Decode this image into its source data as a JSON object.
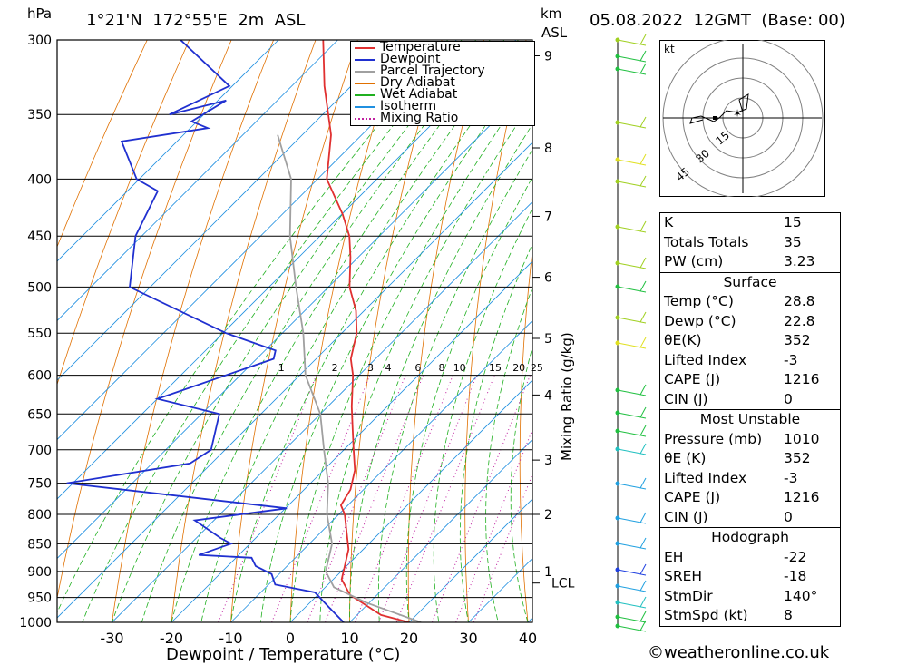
{
  "header": {
    "hpa_unit": "hPa",
    "location": "1°21'N  172°55'E  2m  ASL",
    "km_unit": "km",
    "km_sub": "ASL",
    "datetime": "05.08.2022  12GMT  (Base: 00)"
  },
  "legend": {
    "items": [
      {
        "label": "Temperature",
        "color": "#e03030",
        "style": "solid"
      },
      {
        "label": "Dewpoint",
        "color": "#2030d0",
        "style": "solid"
      },
      {
        "label": "Parcel Trajectory",
        "color": "#a0a0a0",
        "style": "solid"
      },
      {
        "label": "Dry Adiabat",
        "color": "#e07000",
        "style": "solid"
      },
      {
        "label": "Wet Adiabat",
        "color": "#20b020",
        "style": "solid"
      },
      {
        "label": "Isotherm",
        "color": "#2090e0",
        "style": "solid"
      },
      {
        "label": "Mixing Ratio",
        "color": "#c020a0",
        "style": "dotted"
      }
    ]
  },
  "chart_data": {
    "type": "line",
    "title": "",
    "xlabel": "Dewpoint / Temperature (°C)",
    "ylabel": "hPa",
    "xlim": [
      -40,
      40
    ],
    "x_ticks": [
      -30,
      -20,
      -10,
      0,
      10,
      20,
      30,
      40
    ],
    "pressure_levels": [
      300,
      350,
      400,
      450,
      500,
      550,
      600,
      650,
      700,
      750,
      800,
      850,
      900,
      950,
      1000
    ],
    "km_ticks": [
      {
        "label": "9",
        "p": 310
      },
      {
        "label": "8",
        "p": 375
      },
      {
        "label": "7",
        "p": 432
      },
      {
        "label": "6",
        "p": 490
      },
      {
        "label": "5",
        "p": 556
      },
      {
        "label": "4",
        "p": 625
      },
      {
        "label": "3",
        "p": 715
      },
      {
        "label": "2",
        "p": 800
      },
      {
        "label": "1",
        "p": 900
      },
      {
        "label": "LCL",
        "p": 922
      }
    ],
    "right_axis_label": "Mixing Ratio (g/kg)",
    "mixing_ratio_labels": [
      "1",
      "2",
      "3",
      "4",
      "6",
      "8",
      "10",
      "15",
      "20",
      "25"
    ],
    "mixing_ratio_label_temps": [
      -6,
      3,
      9,
      12,
      17,
      21,
      24,
      30,
      34,
      37
    ],
    "series": [
      {
        "name": "Temperature",
        "color": "#e03030",
        "points": [
          [
            -17,
            300
          ],
          [
            -15,
            330
          ],
          [
            -12,
            365
          ],
          [
            -11,
            400
          ],
          [
            -7,
            430
          ],
          [
            -5,
            450
          ],
          [
            -4,
            470
          ],
          [
            -3,
            500
          ],
          [
            -1,
            525
          ],
          [
            0,
            550
          ],
          [
            0,
            580
          ],
          [
            1,
            600
          ],
          [
            2,
            640
          ],
          [
            3,
            670
          ],
          [
            4,
            700
          ],
          [
            5,
            730
          ],
          [
            5,
            760
          ],
          [
            4,
            785
          ],
          [
            5,
            800
          ],
          [
            6,
            830
          ],
          [
            7,
            860
          ],
          [
            7,
            890
          ],
          [
            7,
            915
          ],
          [
            9,
            945
          ],
          [
            15,
            985
          ],
          [
            20,
            1000
          ]
        ]
      },
      {
        "name": "Dewpoint",
        "color": "#2030d0",
        "points": [
          [
            -41,
            300
          ],
          [
            -31,
            330
          ],
          [
            -40,
            350
          ],
          [
            -31,
            340
          ],
          [
            -36,
            355
          ],
          [
            -33,
            360
          ],
          [
            -47,
            370
          ],
          [
            -43,
            400
          ],
          [
            -39,
            410
          ],
          [
            -41,
            450
          ],
          [
            -40,
            500
          ],
          [
            -22,
            550
          ],
          [
            -13,
            570
          ],
          [
            -13,
            580
          ],
          [
            -31,
            630
          ],
          [
            -20,
            650
          ],
          [
            -20,
            700
          ],
          [
            -23,
            720
          ],
          [
            -43,
            750
          ],
          [
            -5,
            790
          ],
          [
            -20,
            810
          ],
          [
            -15,
            840
          ],
          [
            -13,
            850
          ],
          [
            -18,
            870
          ],
          [
            -9,
            875
          ],
          [
            -8,
            890
          ],
          [
            -5,
            905
          ],
          [
            -4,
            925
          ],
          [
            3,
            940
          ],
          [
            6,
            970
          ],
          [
            9,
            1000
          ]
        ]
      },
      {
        "name": "Parcel Trajectory",
        "color": "#a0a0a0",
        "points": [
          [
            -21,
            365
          ],
          [
            -17,
            400
          ],
          [
            -15,
            450
          ],
          [
            -12,
            500
          ],
          [
            -9,
            550
          ],
          [
            -7,
            600
          ],
          [
            -3,
            650
          ],
          [
            -1,
            700
          ],
          [
            1,
            750
          ],
          [
            2,
            800
          ],
          [
            4,
            850
          ],
          [
            4,
            900
          ],
          [
            6,
            930
          ],
          [
            12,
            960
          ],
          [
            22,
            1000
          ]
        ]
      }
    ],
    "hodograph": {
      "unit_label": "kt",
      "ring_labels": [
        "15",
        "30",
        "45"
      ]
    }
  },
  "indices": {
    "top": [
      {
        "label": "K",
        "value": "15"
      },
      {
        "label": "Totals Totals",
        "value": "35"
      },
      {
        "label": "PW (cm)",
        "value": "3.23"
      }
    ],
    "surface": {
      "title": "Surface",
      "rows": [
        {
          "label": "Temp (°C)",
          "value": "28.8"
        },
        {
          "label": "Dewp (°C)",
          "value": "22.8"
        },
        {
          "label": "θE(K)",
          "value": "352"
        },
        {
          "label": "Lifted Index",
          "value": "-3"
        },
        {
          "label": "CAPE (J)",
          "value": "1216"
        },
        {
          "label": "CIN (J)",
          "value": "0"
        }
      ]
    },
    "most_unstable": {
      "title": "Most Unstable",
      "rows": [
        {
          "label": "Pressure (mb)",
          "value": "1010"
        },
        {
          "label": "θE (K)",
          "value": "352"
        },
        {
          "label": "Lifted Index",
          "value": "-3"
        },
        {
          "label": "CAPE (J)",
          "value": "1216"
        },
        {
          "label": "CIN (J)",
          "value": "0"
        }
      ]
    },
    "hodograph_section": {
      "title": "Hodograph",
      "rows": [
        {
          "label": "EH",
          "value": "-22"
        },
        {
          "label": "SREH",
          "value": "-18"
        },
        {
          "label": "StmDir",
          "value": "140°"
        },
        {
          "label": "StmSpd (kt)",
          "value": "8"
        }
      ]
    }
  },
  "footer": {
    "credit": "©weatheronline.co.uk"
  }
}
